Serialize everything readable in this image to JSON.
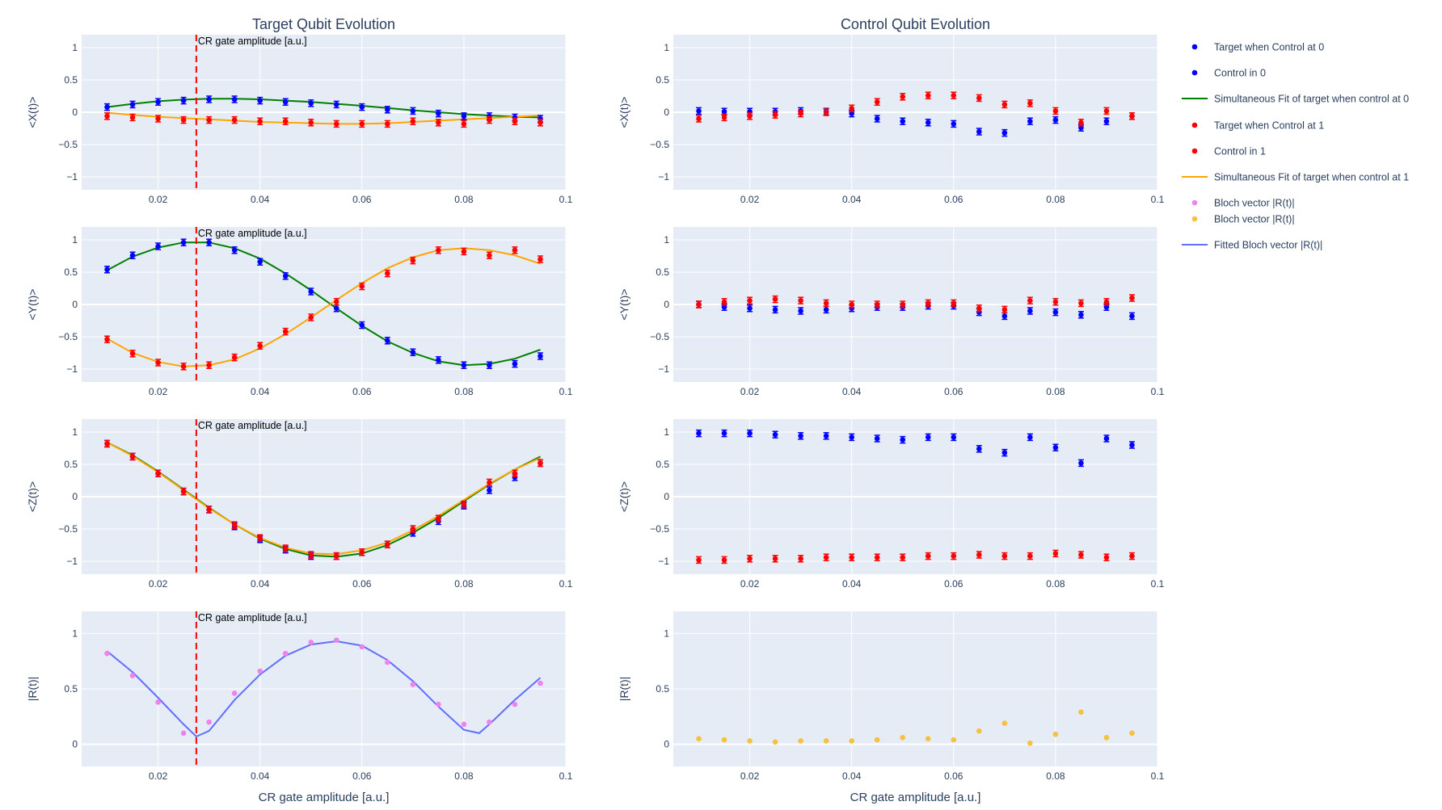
{
  "colors": {
    "plot_bg": "#e5ecf6",
    "grid": "#ffffff",
    "text": "#2a3f5f",
    "target0": "#0000ff",
    "target1": "#ff0000",
    "fit0": "#008000",
    "fit1": "#ffa500",
    "bloch_target": "#ee82ee",
    "bloch_control": "#f7c13d",
    "bloch_fit": "#636efa",
    "vline": "#ff0000"
  },
  "chart_data": {
    "type": "scatter",
    "column_titles": [
      "Target Qubit Evolution",
      "Control Qubit Evolution"
    ],
    "xlabel": "CR gate amplitude [a.u.]",
    "x_ticks": [
      0.02,
      0.04,
      0.06,
      0.08,
      0.1
    ],
    "x_tick_labels": [
      "0.02",
      "0.04",
      "0.06",
      "0.08",
      "0.1"
    ],
    "xlim": [
      0.005,
      0.1
    ],
    "x": [
      0.01,
      0.015,
      0.02,
      0.025,
      0.03,
      0.035,
      0.04,
      0.045,
      0.05,
      0.055,
      0.06,
      0.065,
      0.07,
      0.075,
      0.08,
      0.085,
      0.09,
      0.095
    ],
    "annotation": {
      "x": 0.0275,
      "text": "CR gate amplitude [a.u.]"
    },
    "rows": [
      {
        "ylabel": "<X(t)>",
        "ylim": [
          -1.2,
          1.2
        ],
        "y_ticks": [
          1,
          0.5,
          0,
          -0.5,
          -1
        ],
        "y_tick_labels": [
          "1",
          "0.5",
          "0",
          "−0.5",
          "−1"
        ],
        "target0": [
          0.08,
          0.12,
          0.16,
          0.18,
          0.2,
          0.2,
          0.18,
          0.16,
          0.14,
          0.12,
          0.08,
          0.04,
          0.02,
          -0.02,
          -0.06,
          -0.06,
          -0.08,
          -0.1
        ],
        "target1": [
          -0.06,
          -0.08,
          -0.1,
          -0.12,
          -0.12,
          -0.12,
          -0.14,
          -0.14,
          -0.16,
          -0.18,
          -0.18,
          -0.18,
          -0.14,
          -0.16,
          -0.18,
          -0.12,
          -0.14,
          -0.16
        ],
        "fit0": [
          0.08,
          0.13,
          0.17,
          0.195,
          0.21,
          0.21,
          0.2,
          0.18,
          0.16,
          0.13,
          0.1,
          0.065,
          0.03,
          0.0,
          -0.03,
          -0.05,
          -0.07,
          -0.08
        ],
        "fit1": [
          -0.01,
          -0.04,
          -0.07,
          -0.09,
          -0.11,
          -0.13,
          -0.15,
          -0.16,
          -0.17,
          -0.18,
          -0.18,
          -0.17,
          -0.15,
          -0.13,
          -0.11,
          -0.09,
          -0.07,
          -0.05
        ],
        "control0": [
          0.02,
          0.01,
          0.01,
          0.01,
          0.02,
          0.01,
          -0.02,
          -0.1,
          -0.14,
          -0.16,
          -0.18,
          -0.3,
          -0.32,
          -0.14,
          -0.12,
          -0.24,
          -0.14,
          -0.06
        ],
        "control1": [
          -0.1,
          -0.08,
          -0.06,
          -0.04,
          -0.02,
          0.0,
          0.06,
          0.16,
          0.24,
          0.26,
          0.26,
          0.22,
          0.12,
          0.14,
          0.02,
          -0.16,
          0.02,
          -0.06
        ]
      },
      {
        "ylabel": "<Y(t)>",
        "ylim": [
          -1.2,
          1.2
        ],
        "y_ticks": [
          1,
          0.5,
          0,
          -0.5,
          -1
        ],
        "y_tick_labels": [
          "1",
          "0.5",
          "0",
          "−0.5",
          "−1"
        ],
        "target0": [
          0.54,
          0.76,
          0.9,
          0.96,
          0.96,
          0.84,
          0.66,
          0.44,
          0.2,
          -0.06,
          -0.32,
          -0.56,
          -0.74,
          -0.86,
          -0.94,
          -0.94,
          -0.92,
          -0.8
        ],
        "target1": [
          -0.54,
          -0.76,
          -0.9,
          -0.96,
          -0.94,
          -0.82,
          -0.64,
          -0.42,
          -0.2,
          0.04,
          0.28,
          0.48,
          0.68,
          0.84,
          0.82,
          0.76,
          0.84,
          0.7
        ],
        "fit0": [
          0.53,
          0.74,
          0.88,
          0.96,
          0.96,
          0.87,
          0.71,
          0.48,
          0.22,
          -0.06,
          -0.33,
          -0.57,
          -0.75,
          -0.88,
          -0.94,
          -0.92,
          -0.84,
          -0.7
        ],
        "fit1": [
          -0.53,
          -0.75,
          -0.89,
          -0.96,
          -0.94,
          -0.85,
          -0.68,
          -0.46,
          -0.2,
          0.07,
          0.33,
          0.56,
          0.73,
          0.84,
          0.87,
          0.84,
          0.76,
          0.63
        ],
        "control0": [
          0.0,
          -0.04,
          -0.06,
          -0.08,
          -0.1,
          -0.08,
          -0.06,
          -0.04,
          -0.04,
          -0.02,
          -0.02,
          -0.12,
          -0.18,
          -0.1,
          -0.12,
          -0.16,
          -0.04,
          -0.18
        ],
        "control1": [
          0.0,
          0.04,
          0.06,
          0.08,
          0.06,
          0.02,
          0.0,
          0.0,
          0.0,
          0.02,
          0.02,
          -0.06,
          -0.08,
          0.06,
          0.04,
          0.02,
          0.04,
          0.1
        ]
      },
      {
        "ylabel": "<Z(t)>",
        "ylim": [
          -1.2,
          1.2
        ],
        "y_ticks": [
          1,
          0.5,
          0,
          -0.5,
          -1
        ],
        "y_tick_labels": [
          "1",
          "0.5",
          "0",
          "−0.5",
          "−1"
        ],
        "target0": [
          0.82,
          0.62,
          0.36,
          0.08,
          -0.2,
          -0.46,
          -0.66,
          -0.82,
          -0.92,
          -0.92,
          -0.86,
          -0.74,
          -0.56,
          -0.38,
          -0.14,
          0.1,
          0.3,
          0.52
        ],
        "target1": [
          0.82,
          0.62,
          0.36,
          0.08,
          -0.2,
          -0.44,
          -0.64,
          -0.8,
          -0.9,
          -0.92,
          -0.86,
          -0.74,
          -0.5,
          -0.34,
          -0.12,
          0.22,
          0.36,
          0.52
        ],
        "fit0": [
          0.84,
          0.64,
          0.39,
          0.11,
          -0.17,
          -0.43,
          -0.65,
          -0.81,
          -0.91,
          -0.93,
          -0.88,
          -0.75,
          -0.56,
          -0.33,
          -0.07,
          0.19,
          0.42,
          0.62
        ],
        "fit1": [
          0.84,
          0.63,
          0.38,
          0.1,
          -0.18,
          -0.43,
          -0.64,
          -0.79,
          -0.88,
          -0.89,
          -0.83,
          -0.71,
          -0.52,
          -0.3,
          -0.05,
          0.2,
          0.42,
          0.6
        ],
        "control0": [
          0.98,
          0.98,
          0.98,
          0.96,
          0.94,
          0.94,
          0.92,
          0.9,
          0.88,
          0.92,
          0.92,
          0.74,
          0.68,
          0.92,
          0.76,
          0.52,
          0.9,
          0.8
        ],
        "control1": [
          -0.98,
          -0.98,
          -0.96,
          -0.96,
          -0.96,
          -0.94,
          -0.94,
          -0.94,
          -0.94,
          -0.92,
          -0.92,
          -0.9,
          -0.92,
          -0.92,
          -0.88,
          -0.9,
          -0.94,
          -0.92
        ]
      },
      {
        "ylabel": "|R(t)|",
        "ylim": [
          -0.2,
          1.2
        ],
        "y_ticks": [
          1,
          0.5,
          0
        ],
        "y_tick_labels": [
          "1",
          "0.5",
          "0"
        ],
        "bloch_target": [
          0.82,
          0.62,
          0.38,
          0.1,
          0.2,
          0.46,
          0.66,
          0.82,
          0.92,
          0.94,
          0.88,
          0.74,
          0.54,
          0.36,
          0.18,
          0.2,
          0.36,
          0.55
        ],
        "bloch_fit": {
          "x": [
            0.01,
            0.015,
            0.02,
            0.025,
            0.0275,
            0.03,
            0.035,
            0.04,
            0.045,
            0.05,
            0.055,
            0.06,
            0.065,
            0.07,
            0.075,
            0.08,
            0.083,
            0.085,
            0.09,
            0.095
          ],
          "y": [
            0.84,
            0.65,
            0.42,
            0.18,
            0.07,
            0.12,
            0.4,
            0.63,
            0.8,
            0.9,
            0.93,
            0.89,
            0.76,
            0.57,
            0.34,
            0.13,
            0.1,
            0.18,
            0.4,
            0.6
          ]
        },
        "bloch_control": [
          0.05,
          0.04,
          0.03,
          0.02,
          0.03,
          0.03,
          0.03,
          0.04,
          0.06,
          0.05,
          0.04,
          0.12,
          0.19,
          0.01,
          0.09,
          0.29,
          0.06,
          0.1
        ]
      }
    ],
    "legend": {
      "placement": "right",
      "items": [
        {
          "kind": "marker",
          "color": "#0000ff",
          "label": "Target when Control at 0"
        },
        {
          "kind": "marker",
          "color": "#0000ff",
          "label": "Control in 0"
        },
        {
          "kind": "line",
          "color": "#008000",
          "label": "Simultaneous Fit of target when control at 0"
        },
        {
          "kind": "marker",
          "color": "#ff0000",
          "label": "Target when Control at 1"
        },
        {
          "kind": "marker",
          "color": "#ff0000",
          "label": "Control in 1"
        },
        {
          "kind": "line",
          "color": "#ffa500",
          "label": "Simultaneous Fit of target when control at 1"
        },
        {
          "kind": "marker",
          "color": "#ee82ee",
          "label": "Bloch vector |R(t)|"
        },
        {
          "kind": "marker",
          "color": "#f7c13d",
          "label": "Bloch vector |R(t)|"
        },
        {
          "kind": "line",
          "color": "#636efa",
          "label": "Fitted Bloch vector |R(t)|"
        }
      ]
    }
  }
}
